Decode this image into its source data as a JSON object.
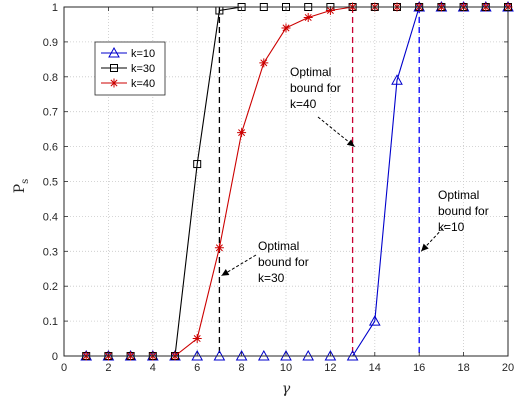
{
  "chart_data": {
    "type": "line",
    "xlabel": "γ",
    "ylabel": {
      "main": "P",
      "sub": "s"
    },
    "xlim": [
      0,
      20
    ],
    "ylim": [
      0,
      1
    ],
    "xticks": [
      0,
      2,
      4,
      6,
      8,
      10,
      12,
      14,
      16,
      18,
      20
    ],
    "yticks": [
      0,
      0.1,
      0.2,
      0.3,
      0.4,
      0.5,
      0.6,
      0.7,
      0.8,
      0.9,
      1
    ],
    "grid": true,
    "legend_position": "upper-left",
    "series": [
      {
        "name": "k=10",
        "color": "#0000cc",
        "marker": "triangle",
        "x": [
          1,
          2,
          3,
          4,
          5,
          6,
          7,
          8,
          9,
          10,
          11,
          12,
          13,
          14,
          15,
          16,
          17,
          18,
          19,
          20
        ],
        "y": [
          0,
          0,
          0,
          0,
          0,
          0,
          0,
          0,
          0,
          0,
          0,
          0,
          0,
          0.1,
          0.79,
          1,
          1,
          1,
          1,
          1
        ]
      },
      {
        "name": "k=30",
        "color": "#000000",
        "marker": "square",
        "x": [
          1,
          2,
          3,
          4,
          5,
          6,
          7,
          8,
          9,
          10,
          11,
          12,
          13,
          14,
          15,
          16,
          17,
          18,
          19,
          20
        ],
        "y": [
          0,
          0,
          0,
          0,
          0,
          0.55,
          0.99,
          1,
          1,
          1,
          1,
          1,
          1,
          1,
          1,
          1,
          1,
          1,
          1,
          1
        ]
      },
      {
        "name": "k=40",
        "color": "#cc0000",
        "marker": "asterisk",
        "x": [
          1,
          2,
          3,
          4,
          5,
          6,
          7,
          8,
          9,
          10,
          11,
          12,
          13,
          14,
          15,
          16,
          17,
          18,
          19,
          20
        ],
        "y": [
          0,
          0,
          0,
          0,
          0,
          0.05,
          0.31,
          0.64,
          0.84,
          0.94,
          0.97,
          0.99,
          1,
          1,
          1,
          1,
          1,
          1,
          1,
          1
        ]
      }
    ],
    "vlines": [
      {
        "x": 7,
        "color": "#000000"
      },
      {
        "x": 13,
        "color": "#cc0033"
      },
      {
        "x": 16,
        "color": "#0000ff"
      }
    ],
    "annotations": [
      {
        "lines": [
          "Optimal",
          "bound for",
          "k=30"
        ],
        "arrow_to": [
          7,
          0.23
        ]
      },
      {
        "lines": [
          "Optimal",
          "bound for",
          "k=40"
        ],
        "arrow_to": [
          13,
          0.6
        ]
      },
      {
        "lines": [
          "Optimal",
          "bound for",
          "k=10"
        ],
        "arrow_to": [
          16,
          0.3
        ]
      }
    ]
  }
}
